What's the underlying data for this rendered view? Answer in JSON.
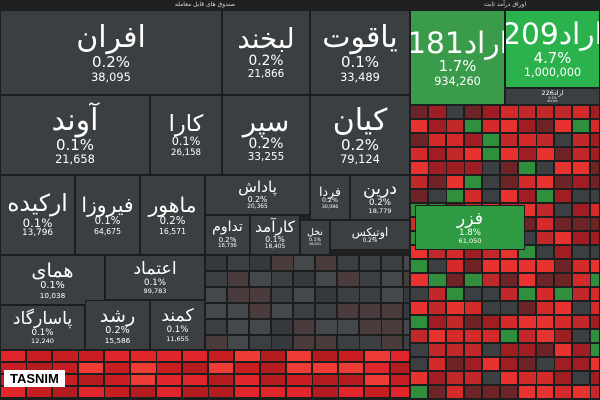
{
  "left_header": "صندوق های قابل معامله",
  "right_header": "اوراق درآمد ثابت",
  "watermark": "TASNIM",
  "tiles": [
    {
      "name": "افران",
      "change": "0.2%",
      "volume": "38,095"
    },
    {
      "name": "آوند",
      "change": "0.1%",
      "volume": "21,658"
    },
    {
      "name": "کارا",
      "change": "0.1%",
      "volume": "26,158"
    },
    {
      "name": "لبخند",
      "change": "0.2%",
      "volume": "21,866"
    },
    {
      "name": "یاقوت",
      "change": "0.1%",
      "volume": "33,489"
    },
    {
      "name": "سپر",
      "change": "0.2%",
      "volume": "33,255"
    },
    {
      "name": "کیان",
      "change": "0.2%",
      "volume": "79,124"
    },
    {
      "name": "ارکیده",
      "change": "0.1%",
      "volume": "13,796"
    },
    {
      "name": "فیروزا",
      "change": "0.1%",
      "volume": "64,675"
    },
    {
      "name": "ماهور",
      "change": "0.2%",
      "volume": "16,571"
    },
    {
      "name": "پاداش",
      "change": "0.2%",
      "volume": "20,365"
    },
    {
      "name": "فردا",
      "change": "0.2%",
      "volume": "30,086"
    },
    {
      "name": "درین",
      "change": "0.2%",
      "volume": "18,779"
    },
    {
      "name": "تداوم",
      "change": "0.2%",
      "volume": "18,736"
    },
    {
      "name": "کارآمد",
      "change": "0.1%",
      "volume": "18,405"
    },
    {
      "name": "نخل",
      "change": "0.1%",
      "volume": "16,831"
    },
    {
      "name": "اوتیکس",
      "change": "0.2%"
    },
    {
      "name": "همای",
      "change": "0.1%",
      "volume": "10,038"
    },
    {
      "name": "اعتماد",
      "change": "0.1%",
      "volume": "99,783"
    },
    {
      "name": "پاسارگاد",
      "change": "0.1%",
      "volume": "12,240"
    },
    {
      "name": "رشد",
      "change": "0.2%",
      "volume": "15,586"
    },
    {
      "name": "کمند",
      "change": "0.1%",
      "volume": "11,655"
    }
  ],
  "bond_tiles": [
    {
      "name": "اراد209",
      "change": "4.7%",
      "volume": "1,000,000"
    },
    {
      "name": "اراد181",
      "change": "1.7%",
      "volume": "934,260"
    },
    {
      "name": "اراد226",
      "change": "0.1%",
      "volume": "815,553"
    }
  ],
  "market_tiles": [
    {
      "name": "فزر",
      "change": "1.8%",
      "volume": "61,050"
    }
  ]
}
